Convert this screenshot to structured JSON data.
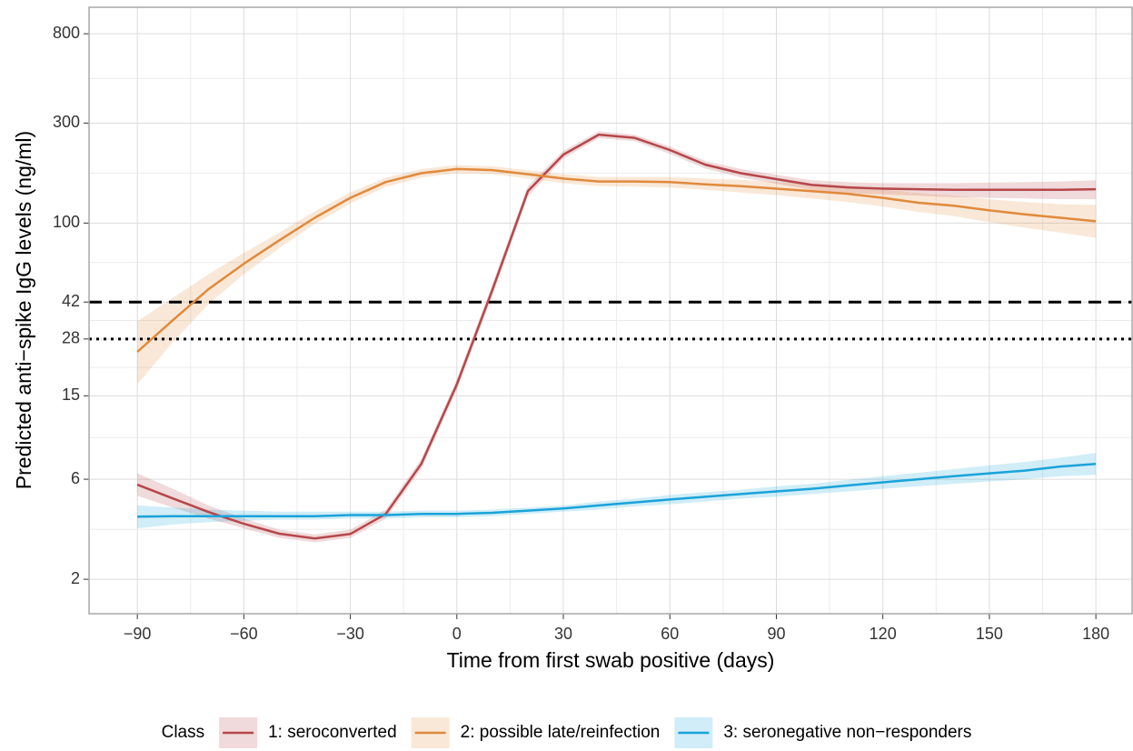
{
  "chart_data": {
    "type": "line",
    "x_label": "Time from first swab positive (days)",
    "y_label": "Predicted anti−spike IgG levels (ng/ml)",
    "y_scale": "log",
    "grid": true,
    "minor_grid": true,
    "legend_position": "bottom",
    "legend_title": "Class",
    "xlim": [
      -103.6,
      190.2
    ],
    "xticks": [
      {
        "value": -90,
        "label": "−90"
      },
      {
        "value": -60,
        "label": "−60"
      },
      {
        "value": -30,
        "label": "−30"
      },
      0,
      30,
      60,
      90,
      120,
      150,
      180
    ],
    "ylim": [
      1.37,
      1070
    ],
    "yticks": [
      2,
      6,
      15,
      28,
      42,
      100,
      300,
      800
    ],
    "reference_lines": [
      {
        "value": 42,
        "style": "dashed"
      },
      {
        "value": 28,
        "style": "dotted"
      }
    ],
    "x": [
      -90,
      -80,
      -70,
      -60,
      -50,
      -40,
      -30,
      -20,
      -10,
      0,
      10,
      20,
      30,
      40,
      50,
      60,
      70,
      80,
      90,
      100,
      110,
      120,
      130,
      140,
      150,
      160,
      170,
      180
    ],
    "series": [
      {
        "name": "1: seroconverted",
        "color": "#b5474b",
        "values": [
          5.65,
          4.86,
          4.19,
          3.68,
          3.3,
          3.13,
          3.29,
          4.1,
          7.1,
          17,
          48,
          142,
          212,
          264,
          255,
          223,
          190,
          173,
          162,
          152,
          148,
          146,
          145,
          144,
          144,
          144,
          144,
          145
        ],
        "lower": [
          5.0,
          4.4,
          3.9,
          3.5,
          3.15,
          3.0,
          3.15,
          3.9,
          6.7,
          16,
          45,
          134,
          203,
          254,
          246,
          214,
          182,
          165,
          154,
          144,
          139,
          137,
          135,
          133,
          132,
          131,
          130,
          130
        ],
        "upper": [
          6.4,
          5.4,
          4.5,
          3.9,
          3.45,
          3.27,
          3.45,
          4.3,
          7.5,
          18,
          51,
          150,
          221,
          274,
          264,
          232,
          198,
          181,
          170,
          160,
          157,
          155,
          155,
          155,
          156,
          157,
          158,
          160
        ]
      },
      {
        "name": "2: possible late/reinfection",
        "color": "#e08a3c",
        "values": [
          24.3,
          34.4,
          48.3,
          64,
          82.8,
          106,
          132,
          157,
          173,
          181,
          179,
          171,
          163,
          158,
          158,
          157,
          153,
          150,
          146,
          142,
          138,
          132,
          125,
          121,
          115,
          110,
          106,
          102
        ],
        "lower": [
          17,
          27,
          41,
          57,
          76,
          99,
          124,
          149,
          165,
          173,
          171,
          163,
          155,
          150,
          149,
          148,
          144,
          140,
          136,
          131,
          126,
          120,
          113,
          108,
          101,
          95,
          90,
          85
        ],
        "upper": [
          34,
          44,
          57,
          72,
          90,
          114,
          140,
          165,
          181,
          189,
          187,
          179,
          171,
          166,
          166,
          166,
          163,
          161,
          157,
          154,
          151,
          145,
          139,
          135,
          130,
          126,
          123,
          122
        ]
      },
      {
        "name": "3: seronegative non−responders",
        "color": "#1aa3d9",
        "values": [
          3.98,
          4.0,
          4.0,
          4.0,
          4.0,
          4.0,
          4.05,
          4.05,
          4.1,
          4.1,
          4.15,
          4.25,
          4.35,
          4.5,
          4.65,
          4.8,
          4.95,
          5.1,
          5.25,
          5.4,
          5.6,
          5.8,
          6.0,
          6.2,
          6.4,
          6.6,
          6.9,
          7.1
        ],
        "lower": [
          3.5,
          3.65,
          3.75,
          3.8,
          3.85,
          3.85,
          3.9,
          3.9,
          3.95,
          3.95,
          4.0,
          4.1,
          4.2,
          4.3,
          4.45,
          4.55,
          4.7,
          4.85,
          4.95,
          5.1,
          5.25,
          5.4,
          5.55,
          5.7,
          5.85,
          6.0,
          6.2,
          6.3
        ],
        "upper": [
          4.5,
          4.4,
          4.3,
          4.25,
          4.2,
          4.2,
          4.2,
          4.2,
          4.25,
          4.25,
          4.3,
          4.4,
          4.5,
          4.7,
          4.85,
          5.05,
          5.2,
          5.35,
          5.55,
          5.7,
          5.95,
          6.2,
          6.45,
          6.7,
          7.0,
          7.25,
          7.6,
          8.0
        ]
      }
    ]
  }
}
